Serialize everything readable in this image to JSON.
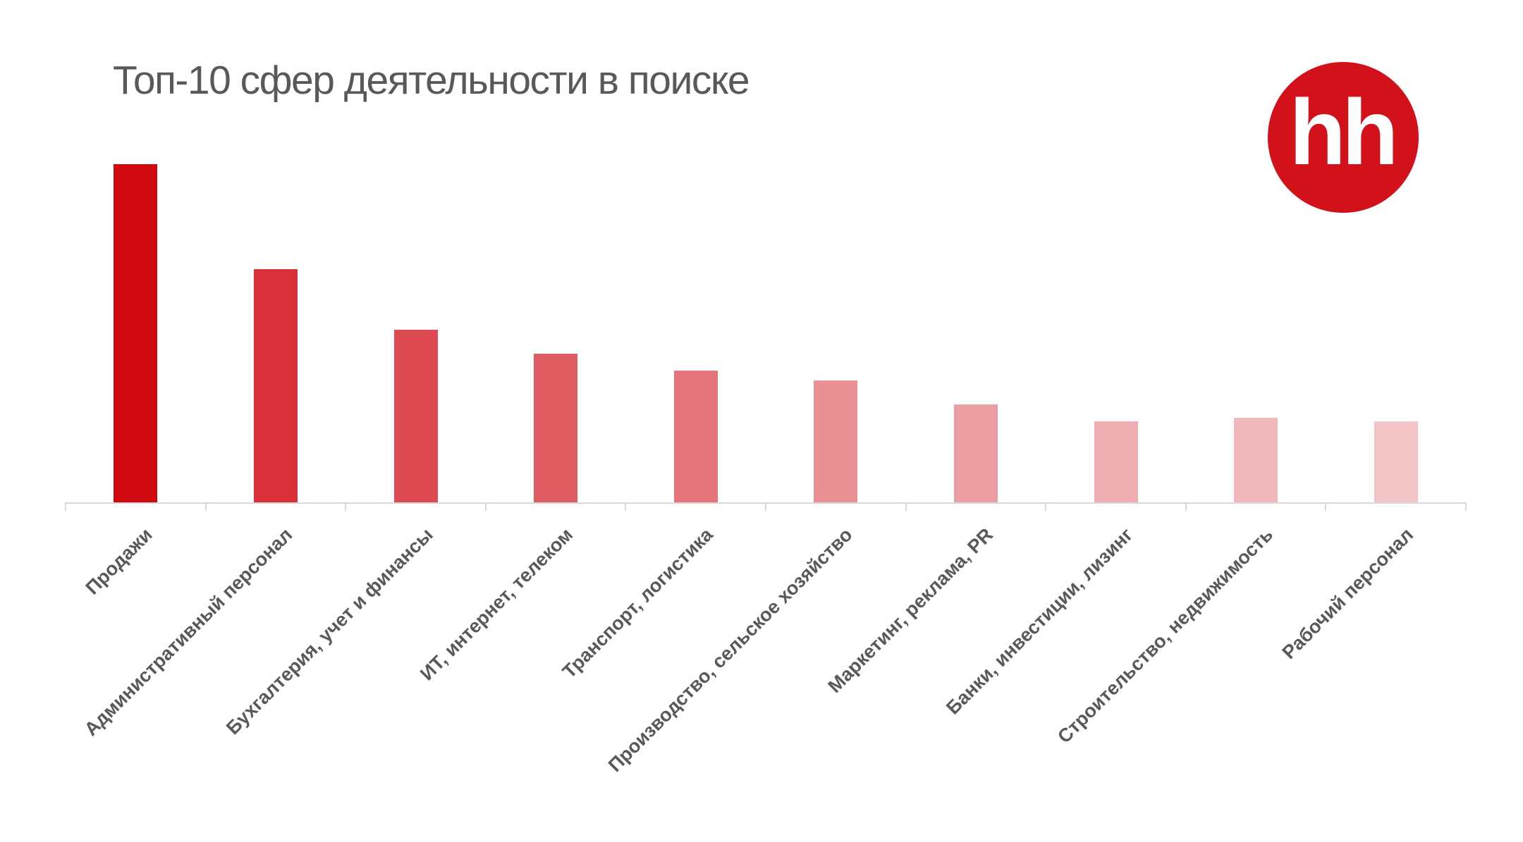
{
  "title": "Топ-10 сфер деятельности в поиске",
  "logo": {
    "text": "hh",
    "color": "#d2111b"
  },
  "chart_data": {
    "type": "bar",
    "title": "Топ-10 сфер деятельности в поиске",
    "xlabel": "",
    "ylabel": "",
    "y_axis_visible": false,
    "grid": false,
    "legend": null,
    "value_note": "Relative bar heights (no numeric axis shown); largest = 100",
    "categories": [
      "Продажи",
      "Административный персонал",
      "Бухгалтерия, учет и финансы",
      "ИТ, интернет, телеком",
      "Транспорт, логистика",
      "Производство, сельское хозяйство",
      "Маркетинг, реклама, PR",
      "Банки, инвестиции, лизинг",
      "Строительство, недвижимость",
      "Рабочий персонал"
    ],
    "values": [
      100,
      69,
      51,
      44,
      39,
      36,
      29,
      24,
      25,
      24
    ],
    "colors": [
      "#d10a12",
      "#d9303a",
      "#dd4a52",
      "#e05c63",
      "#e5757b",
      "#ea9196",
      "#ec9fa3",
      "#efaeb1",
      "#f1b9bb",
      "#f2c4c6"
    ]
  }
}
